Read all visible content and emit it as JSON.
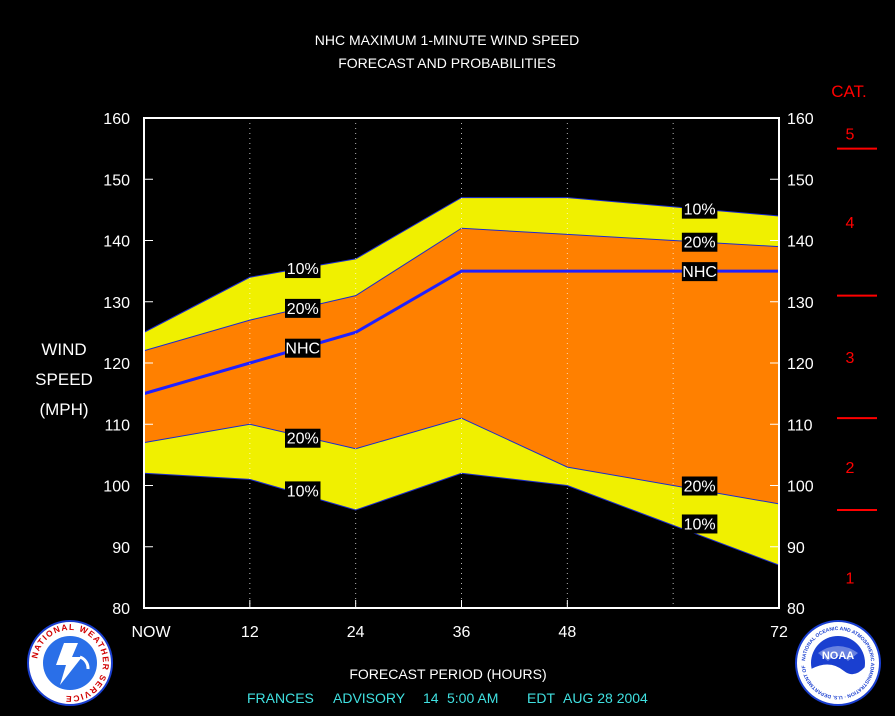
{
  "chart_data": {
    "type": "area",
    "title": "NHC MAXIMUM 1-MINUTE WIND SPEED",
    "subtitle": "FORECAST AND PROBABILITIES",
    "ylabel": [
      "WIND",
      "SPEED",
      "(MPH)"
    ],
    "xlabel": "FORECAST PERIOD (HOURS)",
    "xlim": [
      0,
      72
    ],
    "ylim": [
      80,
      160
    ],
    "xticks": [
      {
        "value": 0,
        "label": "NOW"
      },
      {
        "value": 12,
        "label": "12"
      },
      {
        "value": 24,
        "label": "24"
      },
      {
        "value": 36,
        "label": "36"
      },
      {
        "value": 48,
        "label": "48"
      },
      {
        "value": 72,
        "label": "72"
      }
    ],
    "yticks": [
      80,
      90,
      100,
      110,
      120,
      130,
      140,
      150,
      160
    ],
    "grid_x": [
      12,
      24,
      36,
      48,
      60
    ],
    "x": [
      0,
      12,
      24,
      36,
      48,
      72
    ],
    "series": [
      {
        "name": "10%",
        "values": [
          125,
          134,
          137,
          147,
          147,
          144
        ]
      },
      {
        "name": "20%",
        "values": [
          122,
          127,
          131,
          142,
          141,
          139
        ]
      },
      {
        "name": "NHC",
        "values": [
          115,
          120,
          125,
          135,
          135,
          135
        ]
      },
      {
        "name": "20%",
        "values": [
          107,
          110,
          106,
          111,
          103,
          97
        ]
      },
      {
        "name": "10%",
        "values": [
          102,
          101,
          96,
          102,
          100,
          87
        ]
      }
    ],
    "band_labels": [
      {
        "text": "10%",
        "x": 18,
        "y": 135.5
      },
      {
        "text": "20%",
        "x": 18,
        "y": 129
      },
      {
        "text": "NHC",
        "x": 18,
        "y": 122.5
      },
      {
        "text": "20%",
        "x": 18,
        "y": 107.8
      },
      {
        "text": "10%",
        "x": 18,
        "y": 99.2
      },
      {
        "text": "10%",
        "x": 63,
        "y": 145.2
      },
      {
        "text": "20%",
        "x": 63,
        "y": 139.8
      },
      {
        "text": "NHC",
        "x": 63,
        "y": 135
      },
      {
        "text": "20%",
        "x": 63,
        "y": 100
      },
      {
        "text": "10%",
        "x": 63,
        "y": 93.8
      }
    ],
    "category_scale": {
      "title": "CAT.",
      "boundaries": [
        96,
        111,
        131,
        155
      ],
      "labels": [
        {
          "text": "1",
          "y": 85
        },
        {
          "text": "2",
          "y": 103
        },
        {
          "text": "3",
          "y": 121
        },
        {
          "text": "4",
          "y": 143
        },
        {
          "text": "5",
          "y": 157.5
        }
      ]
    },
    "colors": {
      "band_10": "#f0f000",
      "band_20": "#ff8000",
      "nhc_line": "#2020ff",
      "category": "#ff0000",
      "footer": "#40e0e0"
    }
  },
  "footer": {
    "storm": "FRANCES",
    "advisory_label": "ADVISORY",
    "advisory_number": "14",
    "time": "5:00 AM",
    "zone": "EDT",
    "date": "AUG 28 2004"
  },
  "logos": {
    "left_text": "NATIONAL WEATHER SERVICE",
    "right_text": "NOAA",
    "right_ring_text": "NATIONAL OCEANIC AND ATMOSPHERIC ADMINISTRATION · U.S. DEPARTMENT OF COMMERCE"
  }
}
